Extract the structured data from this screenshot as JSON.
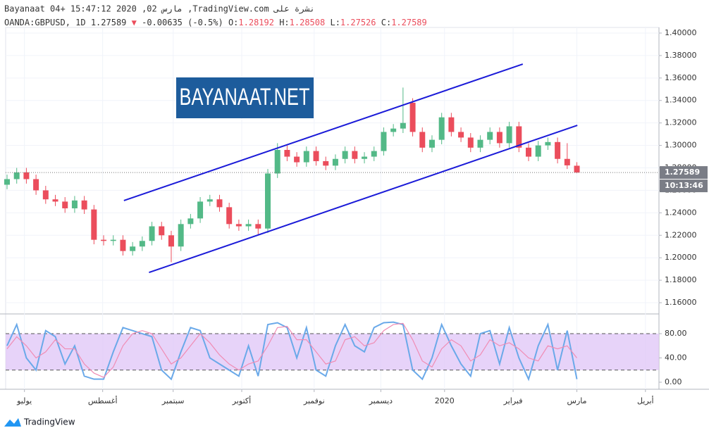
{
  "header": {
    "line": "Bayanaat 04+ 15:47:12 2020 ,02 مارس ,TradingView.com نشرة على",
    "symbol": "OANDA:GBPUSD, 1D",
    "change": "-0.00635 (-0.5%)",
    "ohlc_labels": [
      "O:",
      "H:",
      "L:",
      "C:"
    ],
    "countdown": "10:13:46"
  },
  "logo": "BAYANAAT.NET",
  "footer": "TradingView",
  "chart_data": [
    {
      "type": "candlestick",
      "up_color": "#53b987",
      "down_color": "#eb4d5c",
      "xlim": [
        -0.146,
        67.5
      ],
      "ylim": [
        1.15,
        1.405
      ],
      "xticks": [
        {
          "value": 1.8,
          "label": "يوليو"
        },
        {
          "value": 9.9,
          "label": "أغسطس"
        },
        {
          "value": 17.2,
          "label": "سبتمبر"
        },
        {
          "value": 24.3,
          "label": "أكتوبر"
        },
        {
          "value": 31.8,
          "label": "نوفمبر"
        },
        {
          "value": 38.7,
          "label": "ديسمبر"
        },
        {
          "value": 45.3,
          "label": "2020"
        },
        {
          "value": 52.4,
          "label": "فبراير"
        },
        {
          "value": 59,
          "label": "مارس"
        },
        {
          "value": 66.1,
          "label": "أبريل"
        }
      ],
      "yticks": [
        {
          "value": 1.16,
          "label": "1.16000"
        },
        {
          "value": 1.18,
          "label": "1.18000"
        },
        {
          "value": 1.2,
          "label": "1.20000"
        },
        {
          "value": 1.22,
          "label": "1.22000"
        },
        {
          "value": 1.24,
          "label": "1.24000"
        },
        {
          "value": 1.26,
          "label": "1.26000"
        },
        {
          "value": 1.28,
          "label": "1.28000"
        },
        {
          "value": 1.3,
          "label": "1.30000"
        },
        {
          "value": 1.32,
          "label": "1.32000"
        },
        {
          "value": 1.34,
          "label": "1.34000"
        },
        {
          "value": 1.36,
          "label": "1.36000"
        },
        {
          "value": 1.38,
          "label": "1.38000"
        },
        {
          "value": 1.4,
          "label": "1.40000"
        }
      ],
      "grid": true,
      "open": [
        1.265,
        1.27,
        1.276,
        1.27,
        1.26,
        1.252,
        1.25,
        1.244,
        1.251,
        1.243,
        1.216,
        1.215,
        1.216,
        1.206,
        1.21,
        1.215,
        1.228,
        1.22,
        1.21,
        1.23,
        1.235,
        1.25,
        1.252,
        1.245,
        1.23,
        1.228,
        1.23,
        1.226,
        1.275,
        1.296,
        1.29,
        1.285,
        1.295,
        1.286,
        1.282,
        1.288,
        1.295,
        1.288,
        1.29,
        1.295,
        1.312,
        1.315,
        1.338,
        1.312,
        1.298,
        1.305,
        1.325,
        1.312,
        1.307,
        1.298,
        1.305,
        1.312,
        1.302,
        1.317,
        1.298,
        1.29,
        1.3,
        1.303,
        1.288,
        1.28192
      ],
      "high": [
        1.274,
        1.28,
        1.28,
        1.274,
        1.264,
        1.256,
        1.254,
        1.255,
        1.255,
        1.247,
        1.22,
        1.22,
        1.22,
        1.214,
        1.219,
        1.232,
        1.232,
        1.224,
        1.234,
        1.239,
        1.254,
        1.256,
        1.256,
        1.249,
        1.234,
        1.234,
        1.234,
        1.279,
        1.302,
        1.3,
        1.294,
        1.299,
        1.299,
        1.29,
        1.292,
        1.299,
        1.299,
        1.294,
        1.299,
        1.316,
        1.319,
        1.3515,
        1.342,
        1.316,
        1.309,
        1.329,
        1.329,
        1.316,
        1.311,
        1.309,
        1.316,
        1.316,
        1.321,
        1.321,
        1.302,
        1.304,
        1.307,
        1.307,
        1.302,
        1.28508
      ],
      "low": [
        1.261,
        1.266,
        1.266,
        1.256,
        1.248,
        1.246,
        1.24,
        1.24,
        1.239,
        1.212,
        1.211,
        1.211,
        1.202,
        1.202,
        1.206,
        1.211,
        1.216,
        1.196,
        1.206,
        1.226,
        1.231,
        1.246,
        1.241,
        1.226,
        1.224,
        1.224,
        1.22,
        1.222,
        1.271,
        1.286,
        1.281,
        1.281,
        1.282,
        1.278,
        1.278,
        1.284,
        1.284,
        1.284,
        1.286,
        1.291,
        1.308,
        1.311,
        1.308,
        1.294,
        1.294,
        1.301,
        1.308,
        1.303,
        1.294,
        1.294,
        1.301,
        1.298,
        1.298,
        1.294,
        1.286,
        1.286,
        1.296,
        1.284,
        1.279,
        1.27526
      ],
      "close": [
        1.27,
        1.276,
        1.27,
        1.26,
        1.252,
        1.25,
        1.244,
        1.251,
        1.243,
        1.216,
        1.215,
        1.216,
        1.206,
        1.21,
        1.215,
        1.228,
        1.22,
        1.21,
        1.23,
        1.235,
        1.25,
        1.252,
        1.245,
        1.23,
        1.228,
        1.23,
        1.226,
        1.275,
        1.296,
        1.29,
        1.285,
        1.295,
        1.286,
        1.282,
        1.288,
        1.295,
        1.288,
        1.29,
        1.295,
        1.312,
        1.315,
        1.32,
        1.312,
        1.298,
        1.305,
        1.325,
        1.312,
        1.307,
        1.298,
        1.305,
        1.312,
        1.302,
        1.317,
        1.298,
        1.29,
        1.3,
        1.303,
        1.288,
        1.28224,
        1.27589
      ],
      "trend_lines": [
        {
          "x": [
            12.1,
            53.4
          ],
          "y": [
            1.2509,
            1.3724
          ],
          "color": "#1b1bd8"
        },
        {
          "x": [
            14.7,
            59.05
          ],
          "y": [
            1.1869,
            1.3179
          ],
          "color": "#1b1bd8"
        }
      ]
    },
    {
      "type": "line",
      "ylim": [
        -11.6,
        112.5
      ],
      "band": [
        20,
        80
      ],
      "band_color": "#e1c8f7",
      "yticks": [
        {
          "value": 0,
          "label": "0.00"
        },
        {
          "value": 40,
          "label": "40.00"
        },
        {
          "value": 80,
          "label": "80.00"
        }
      ],
      "series": [
        {
          "color": "#6aa9e9",
          "values": [
            60,
            95,
            40,
            20,
            85,
            75,
            30,
            60,
            10,
            5,
            5,
            50,
            90,
            85,
            80,
            75,
            20,
            5,
            50,
            90,
            85,
            40,
            30,
            20,
            10,
            60,
            10,
            95,
            98,
            90,
            40,
            90,
            20,
            10,
            60,
            95,
            60,
            50,
            90,
            98,
            99,
            95,
            20,
            5,
            40,
            95,
            60,
            30,
            10,
            80,
            85,
            30,
            90,
            40,
            5,
            60,
            95,
            20,
            85,
            5
          ]
        },
        {
          "color": "#f08cb4",
          "values": [
            55,
            75,
            60,
            40,
            50,
            70,
            55,
            55,
            30,
            15,
            8,
            25,
            60,
            80,
            85,
            80,
            55,
            30,
            40,
            60,
            80,
            65,
            45,
            30,
            20,
            30,
            35,
            60,
            90,
            92,
            70,
            70,
            50,
            30,
            35,
            70,
            75,
            60,
            65,
            85,
            95,
            97,
            70,
            35,
            25,
            55,
            70,
            60,
            35,
            45,
            70,
            60,
            65,
            55,
            40,
            35,
            60,
            55,
            60,
            40
          ]
        }
      ]
    }
  ]
}
